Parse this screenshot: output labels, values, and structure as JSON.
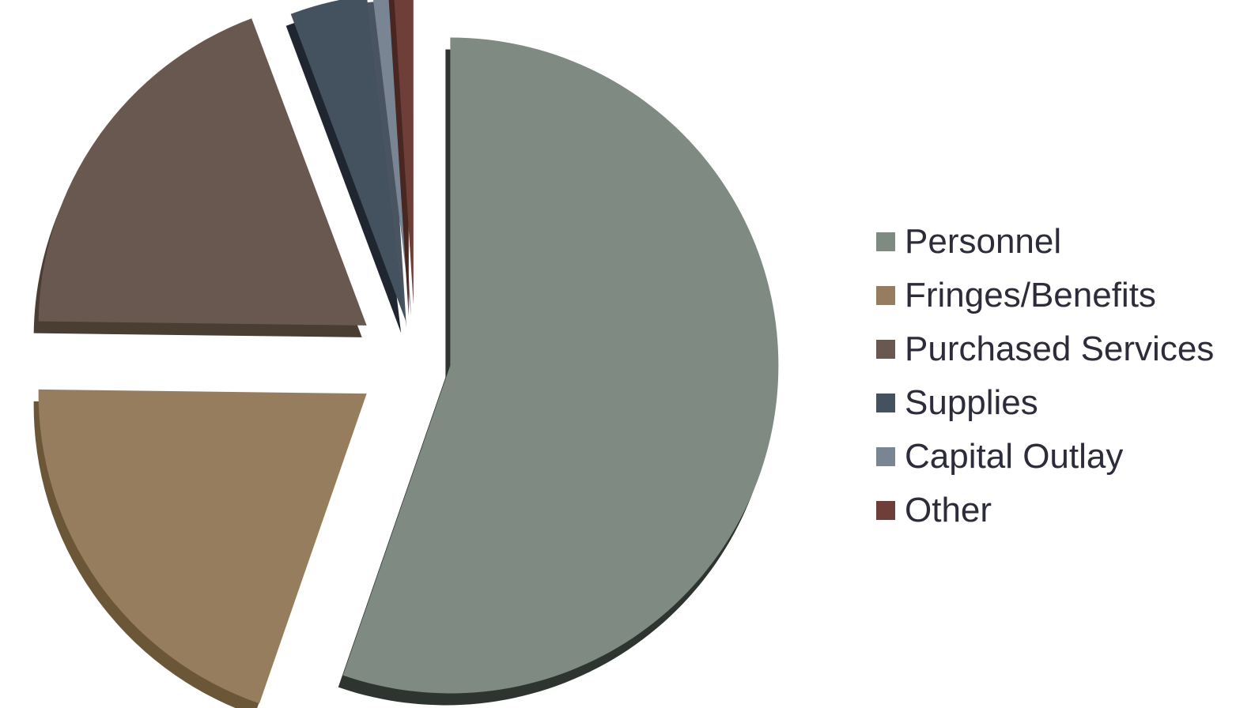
{
  "chart_data": {
    "type": "pie",
    "title": "",
    "slices": [
      {
        "label": "Personnel",
        "value": 55.3,
        "color": "#7f8a82",
        "side": "#2e3530"
      },
      {
        "label": "Fringes/Benefits",
        "value": 19.9,
        "color": "#957d5d",
        "side": "#6b5638"
      },
      {
        "label": "Purchased Services",
        "value": 19.1,
        "color": "#69584f",
        "side": "#4a3d32"
      },
      {
        "label": "Supplies",
        "value": 3.8,
        "color": "#44515f",
        "side": "#1f2630"
      },
      {
        "label": "Capital Outlay",
        "value": 0.9,
        "color": "#7a8594",
        "side": "#4a5460"
      },
      {
        "label": "Other",
        "value": 1.0,
        "color": "#6e3f38",
        "side": "#4a2620"
      }
    ],
    "legend_position": "right"
  }
}
